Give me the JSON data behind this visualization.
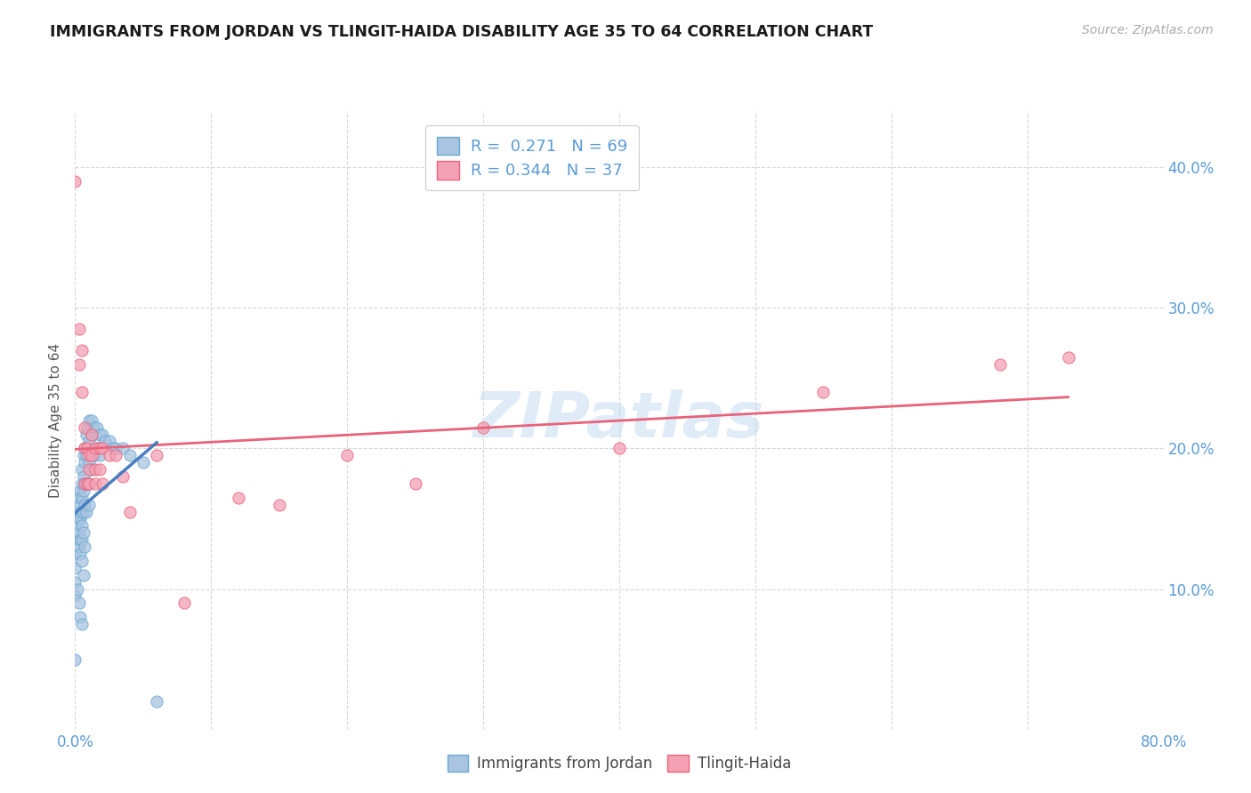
{
  "title": "IMMIGRANTS FROM JORDAN VS TLINGIT-HAIDA DISABILITY AGE 35 TO 64 CORRELATION CHART",
  "source": "Source: ZipAtlas.com",
  "ylabel": "Disability Age 35 to 64",
  "xlim": [
    0.0,
    0.8
  ],
  "ylim": [
    0.0,
    0.44
  ],
  "xticks": [
    0.0,
    0.1,
    0.2,
    0.3,
    0.4,
    0.5,
    0.6,
    0.7,
    0.8
  ],
  "xticklabels": [
    "0.0%",
    "",
    "",
    "",
    "",
    "",
    "",
    "",
    "80.0%"
  ],
  "yticks": [
    0.0,
    0.1,
    0.2,
    0.3,
    0.4
  ],
  "yticklabels": [
    "",
    "10.0%",
    "20.0%",
    "30.0%",
    "40.0%"
  ],
  "blue_R": 0.271,
  "blue_N": 69,
  "pink_R": 0.344,
  "pink_N": 37,
  "blue_dot_color": "#a8c4e0",
  "pink_dot_color": "#f4a0b5",
  "blue_edge_color": "#6aaad4",
  "pink_edge_color": "#e8637a",
  "blue_line_color": "#4a7fc1",
  "pink_line_color": "#e8637a",
  "watermark": "ZIPatlas",
  "blue_scatter_x": [
    0.0,
    0.0,
    0.0,
    0.0,
    0.0,
    0.0,
    0.002,
    0.002,
    0.002,
    0.003,
    0.003,
    0.003,
    0.003,
    0.003,
    0.004,
    0.004,
    0.004,
    0.004,
    0.004,
    0.004,
    0.005,
    0.005,
    0.005,
    0.005,
    0.005,
    0.005,
    0.005,
    0.005,
    0.006,
    0.006,
    0.006,
    0.006,
    0.006,
    0.006,
    0.007,
    0.007,
    0.007,
    0.007,
    0.007,
    0.008,
    0.008,
    0.008,
    0.008,
    0.009,
    0.009,
    0.009,
    0.01,
    0.01,
    0.01,
    0.01,
    0.01,
    0.012,
    0.012,
    0.012,
    0.014,
    0.014,
    0.016,
    0.016,
    0.018,
    0.018,
    0.02,
    0.022,
    0.025,
    0.028,
    0.03,
    0.035,
    0.04,
    0.05,
    0.06
  ],
  "blue_scatter_y": [
    0.135,
    0.125,
    0.115,
    0.105,
    0.095,
    0.05,
    0.155,
    0.145,
    0.1,
    0.165,
    0.15,
    0.14,
    0.13,
    0.09,
    0.17,
    0.16,
    0.15,
    0.135,
    0.125,
    0.08,
    0.185,
    0.175,
    0.165,
    0.155,
    0.145,
    0.135,
    0.12,
    0.075,
    0.195,
    0.18,
    0.17,
    0.155,
    0.14,
    0.11,
    0.2,
    0.19,
    0.175,
    0.16,
    0.13,
    0.21,
    0.195,
    0.175,
    0.155,
    0.215,
    0.2,
    0.175,
    0.22,
    0.205,
    0.19,
    0.175,
    0.16,
    0.22,
    0.21,
    0.185,
    0.215,
    0.195,
    0.215,
    0.2,
    0.21,
    0.195,
    0.21,
    0.205,
    0.205,
    0.2,
    0.2,
    0.2,
    0.195,
    0.19,
    0.02
  ],
  "pink_scatter_x": [
    0.0,
    0.003,
    0.003,
    0.005,
    0.005,
    0.007,
    0.007,
    0.007,
    0.009,
    0.009,
    0.01,
    0.01,
    0.01,
    0.012,
    0.012,
    0.015,
    0.015,
    0.015,
    0.018,
    0.018,
    0.02,
    0.02,
    0.025,
    0.03,
    0.035,
    0.04,
    0.06,
    0.08,
    0.12,
    0.15,
    0.2,
    0.25,
    0.3,
    0.4,
    0.55,
    0.68,
    0.73
  ],
  "pink_scatter_y": [
    0.39,
    0.285,
    0.26,
    0.27,
    0.24,
    0.215,
    0.2,
    0.175,
    0.2,
    0.175,
    0.195,
    0.185,
    0.175,
    0.21,
    0.195,
    0.2,
    0.185,
    0.175,
    0.2,
    0.185,
    0.2,
    0.175,
    0.195,
    0.195,
    0.18,
    0.155,
    0.195,
    0.09,
    0.165,
    0.16,
    0.195,
    0.175,
    0.215,
    0.2,
    0.24,
    0.26,
    0.265
  ],
  "grid_color": "#d8d8d8",
  "tick_color": "#5b9bd5",
  "background_color": "#ffffff",
  "title_color": "#1a1a1a",
  "source_color": "#aaaaaa",
  "ylabel_color": "#555555"
}
